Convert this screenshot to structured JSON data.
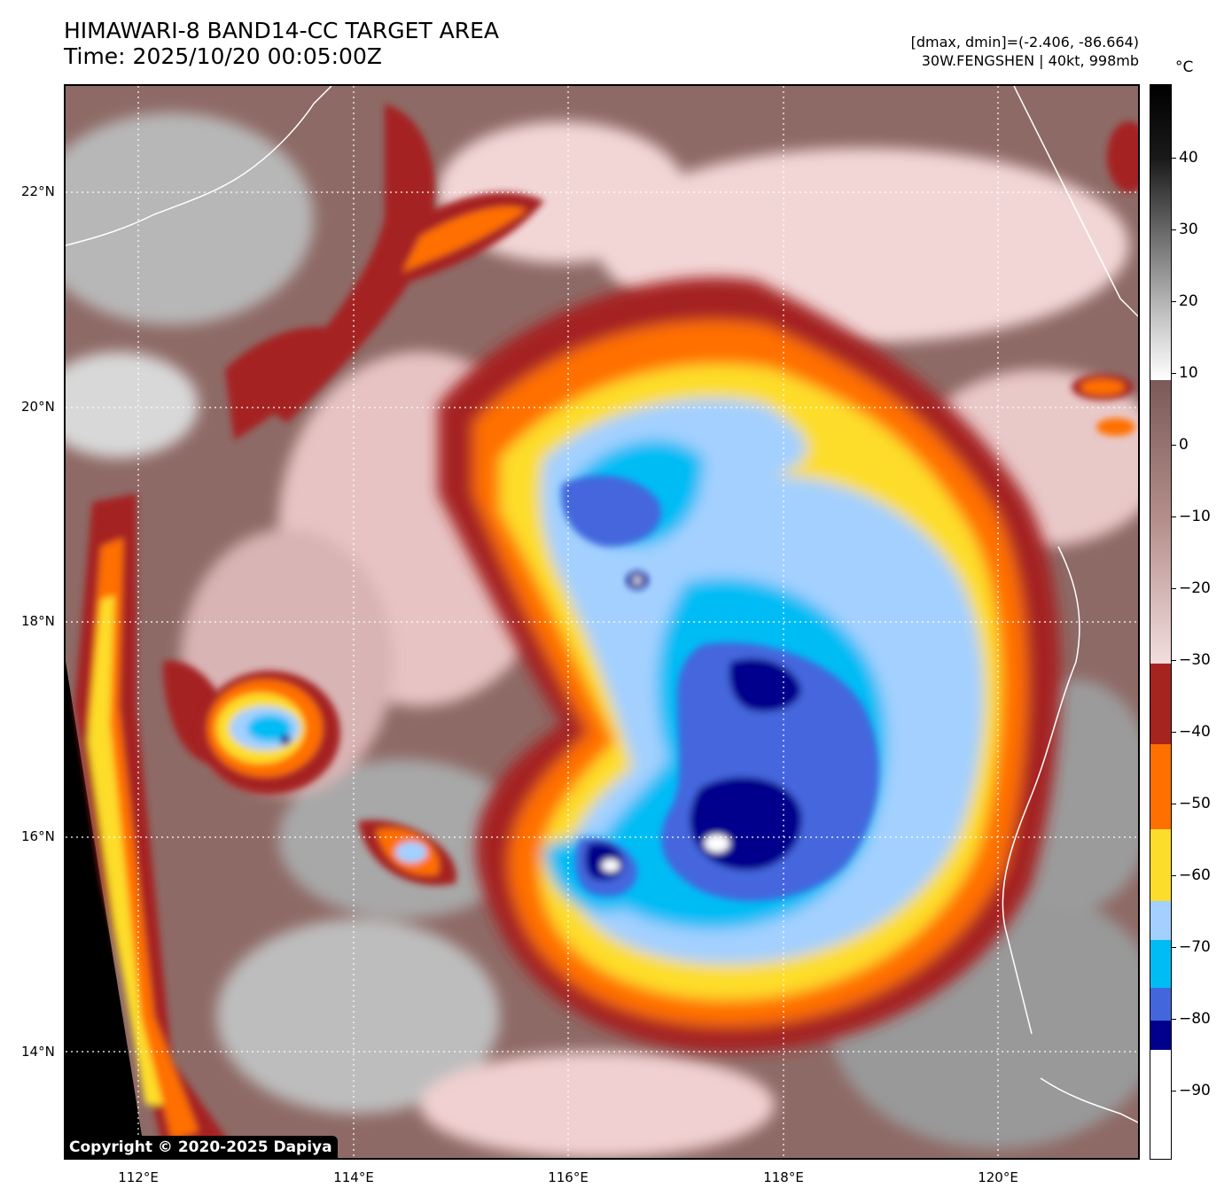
{
  "title": {
    "line1": "HIMAWARI-8 BAND14-CC TARGET AREA",
    "line2": "Time: 2025/10/20 00:05:00Z"
  },
  "info": {
    "range": "[dmax, dmin]=(-2.406, -86.664)",
    "storm": "30W.FENGSHEN | 40kt, 998mb"
  },
  "copyright": "Copyright © 2020-2025 Dapiya",
  "lat_labels": [
    "22°N",
    "20°N",
    "18°N",
    "16°N",
    "14°N"
  ],
  "lon_labels": [
    "112°E",
    "114°E",
    "116°E",
    "118°E",
    "120°E"
  ],
  "colorbar": {
    "unit": "°C",
    "labels": [
      "40",
      "30",
      "20",
      "10",
      "0",
      "−10",
      "−20",
      "−30",
      "−40",
      "−50",
      "−60",
      "−70",
      "−80",
      "−90"
    ],
    "palette": {
      "warm": "#000000",
      "white": "#ffffff",
      "brown": "#8e6a66",
      "pink": "#f2d6d6",
      "red": "#a52420",
      "orange": "#ff7000",
      "yellow": "#fddd2c",
      "lightblue": "#a3d0ff",
      "cyan": "#00bcf5",
      "blue": "#4466dd",
      "navy": "#00008c"
    }
  }
}
